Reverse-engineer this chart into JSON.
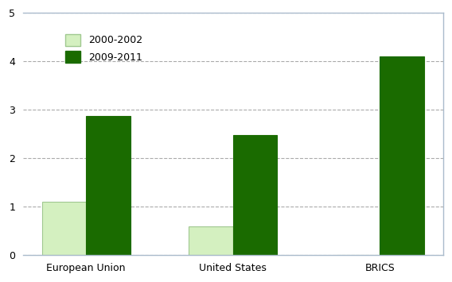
{
  "categories": [
    "European Union",
    "United States",
    "BRICS"
  ],
  "values_2000_2002": [
    1.1,
    0.6,
    0.0
  ],
  "values_2009_2011": [
    2.87,
    2.48,
    4.1
  ],
  "color_2000_2002": "#d4f0c0",
  "color_2000_2002_edge": "#a0c890",
  "color_2009_2011": "#1a6b00",
  "color_2009_2011_edge": "#1a6b00",
  "legend_labels": [
    "2000-2002",
    "2009-2011"
  ],
  "ylim": [
    0,
    5
  ],
  "yticks": [
    0,
    1,
    2,
    3,
    4,
    5
  ],
  "bar_width": 0.3,
  "background_color": "#ffffff",
  "grid_color": "#aaaaaa",
  "figure_edge_color": "#aabbcc"
}
